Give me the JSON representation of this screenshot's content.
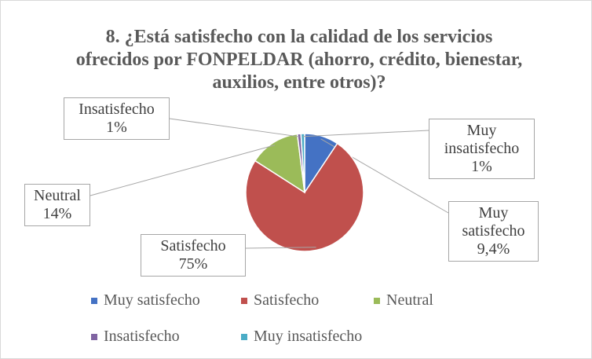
{
  "chart_data": {
    "type": "pie",
    "title": "8. ¿Está satisfecho con la calidad de los servicios ofrecidos por FONPELDAR (ahorro, crédito, bienestar, auxilios, entre otros)?",
    "categories": [
      "Muy satisfecho",
      "Satisfecho",
      "Neutral",
      "Insatisfecho",
      "Muy insatisfecho"
    ],
    "values": [
      9.4,
      75,
      14,
      1,
      1
    ],
    "value_labels": [
      "9,4%",
      "75%",
      "14%",
      "1%",
      "1%"
    ],
    "colors": [
      "#4472c4",
      "#c0504d",
      "#9bbb59",
      "#8064a2",
      "#4bacc6"
    ]
  }
}
